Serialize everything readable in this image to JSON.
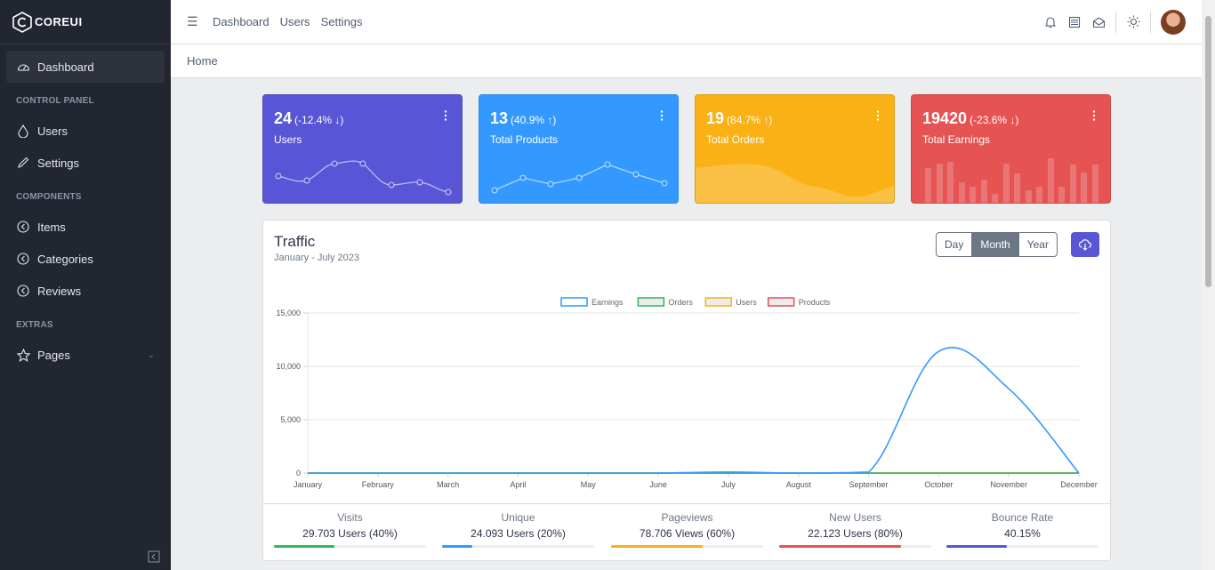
{
  "brand": {
    "name": "COREUI"
  },
  "sidebar": {
    "items": [
      {
        "type": "item",
        "label": "Dashboard",
        "icon": "speedometer-icon",
        "active": true
      },
      {
        "type": "title",
        "label": "CONTROL PANEL"
      },
      {
        "type": "item",
        "label": "Users",
        "icon": "drop-icon"
      },
      {
        "type": "item",
        "label": "Settings",
        "icon": "pencil-icon"
      },
      {
        "type": "title",
        "label": "COMPONENTS"
      },
      {
        "type": "item",
        "label": "Items",
        "icon": "chevron-circle-icon"
      },
      {
        "type": "item",
        "label": "Categories",
        "icon": "chevron-circle-icon"
      },
      {
        "type": "item",
        "label": "Reviews",
        "icon": "chevron-circle-icon"
      },
      {
        "type": "title",
        "label": "EXTRAS"
      },
      {
        "type": "item",
        "label": "Pages",
        "icon": "star-icon",
        "chevron": true
      }
    ]
  },
  "header": {
    "nav": [
      "Dashboard",
      "Users",
      "Settings"
    ],
    "icons": [
      "bell-icon",
      "list-icon",
      "envelope-icon",
      "sun-icon"
    ]
  },
  "breadcrumb": {
    "home": "Home"
  },
  "widgets": [
    {
      "value": "24",
      "change": "(-12.4% ↓)",
      "label": "Users",
      "color": "#5856d6"
    },
    {
      "value": "13",
      "change": "(40.9% ↑)",
      "label": "Total Products",
      "color": "#3399ff"
    },
    {
      "value": "19",
      "change": "(84.7% ↑)",
      "label": "Total Orders",
      "color": "#f9b115"
    },
    {
      "value": "19420",
      "change": "(-23.6% ↓)",
      "label": "Total Earnings",
      "color": "#e55353"
    }
  ],
  "traffic": {
    "title": "Traffic",
    "subtitle": "January - July 2023",
    "range_buttons": [
      "Day",
      "Month",
      "Year"
    ],
    "selected_range": "Month"
  },
  "chart_data": {
    "type": "line",
    "categories": [
      "January",
      "February",
      "March",
      "April",
      "May",
      "June",
      "July",
      "August",
      "September",
      "October",
      "November",
      "December"
    ],
    "series": [
      {
        "name": "Earnings",
        "color": "#3399ff",
        "values": [
          0,
          0,
          0,
          0,
          0,
          0,
          100,
          0,
          100,
          11400,
          7900,
          0
        ]
      },
      {
        "name": "Orders",
        "color": "#2eb85c",
        "values": [
          0,
          0,
          0,
          0,
          0,
          0,
          0,
          0,
          0,
          0,
          0,
          0
        ]
      },
      {
        "name": "Users",
        "color": "#f9b115",
        "values": [
          0,
          0,
          0,
          0,
          0,
          0,
          0,
          0,
          0,
          0,
          0,
          0
        ]
      },
      {
        "name": "Products",
        "color": "#e55353",
        "values": [
          0,
          0,
          0,
          0,
          0,
          0,
          0,
          0,
          0,
          0,
          0,
          0
        ]
      }
    ],
    "yticks": [
      "0",
      "5,000",
      "10,000",
      "15,000"
    ],
    "ylim": [
      0,
      15000
    ],
    "grid": true,
    "legend": "top"
  },
  "stats": [
    {
      "label": "Visits",
      "value": "29.703 Users (40%)",
      "percent": 40,
      "color": "#2eb85c"
    },
    {
      "label": "Unique",
      "value": "24.093 Users (20%)",
      "percent": 20,
      "color": "#3399ff"
    },
    {
      "label": "Pageviews",
      "value": "78.706 Views (60%)",
      "percent": 60,
      "color": "#f9b115"
    },
    {
      "label": "New Users",
      "value": "22.123 Users (80%)",
      "percent": 80,
      "color": "#e55353"
    },
    {
      "label": "Bounce Rate",
      "value": "40.15%",
      "percent": 40,
      "color": "#5856d6"
    }
  ]
}
